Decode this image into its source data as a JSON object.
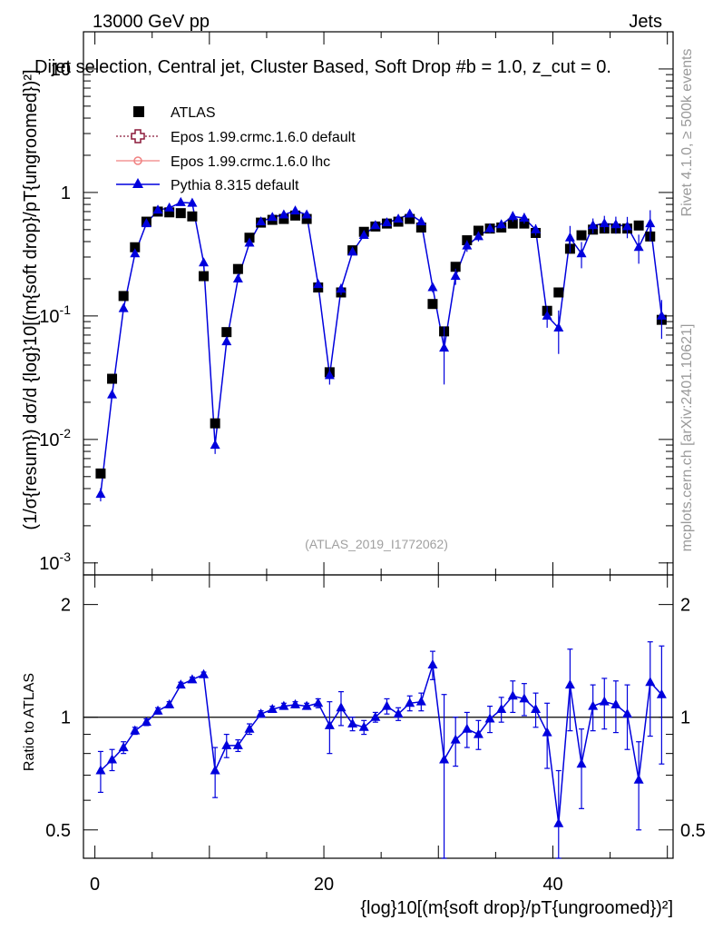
{
  "header": {
    "left": "13000 GeV pp",
    "right": "Jets",
    "title": "Dijet selection, Central jet, Cluster Based, Soft Drop #b = 1.0, z_cut = 0.",
    "ref": "(ATLAS_2019_I1772062)"
  },
  "side": {
    "rivet": "Rivet 4.1.0, ≥ 500k events",
    "mcplots": "mcplots.cern.ch [arXiv:2401.10621]"
  },
  "legend": [
    {
      "label": "ATLAS"
    },
    {
      "label": "Epos 1.99.crmc.1.6.0 default"
    },
    {
      "label": "Epos 1.99.crmc.1.6.0 lhc"
    },
    {
      "label": "Pythia 8.315 default"
    }
  ],
  "axes": {
    "ylabel_main": "(1/σ{resum}) dσ/d {log}10[(m{soft drop}/pT{ungroomed})²]",
    "ylabel_ratio": "Ratio to ATLAS",
    "xlabel": "{log}10[(m{soft drop}/pT{ungroomed})²]",
    "x_ticks": [
      "0",
      "20",
      "40"
    ],
    "y_ticks_main": [
      "10^-3",
      "10^-2",
      "10^-1",
      "1",
      "10"
    ],
    "y_ticks_ratio": [
      "0.5",
      "1",
      "2"
    ]
  },
  "colors": {
    "data": "#000000",
    "pythia": "#0000dd",
    "epos_default": "#8b1a3a",
    "epos_lhc": "#f08080"
  },
  "chart_data": {
    "type": "scatter",
    "x_range": [
      -1,
      50.5
    ],
    "ylim_main": [
      0.0008,
      20
    ],
    "ylim_ratio": [
      0.42,
      2.4
    ],
    "x": [
      0.5,
      1.5,
      2.5,
      3.5,
      4.5,
      5.5,
      6.5,
      7.5,
      8.5,
      9.5,
      10.5,
      11.5,
      12.5,
      13.5,
      14.5,
      15.5,
      16.5,
      17.5,
      18.5,
      19.5,
      20.5,
      21.5,
      22.5,
      23.5,
      24.5,
      25.5,
      26.5,
      27.5,
      28.5,
      29.5,
      30.5,
      31.5,
      32.5,
      33.5,
      34.5,
      35.5,
      36.5,
      37.5,
      38.5,
      39.5,
      40.5,
      41.5,
      42.5,
      43.5,
      44.5,
      45.5,
      46.5,
      47.5,
      48.5,
      49.5
    ],
    "series": [
      {
        "name": "ATLAS",
        "values": [
          0.0053,
          0.031,
          0.145,
          0.36,
          0.58,
          0.7,
          0.69,
          0.68,
          0.64,
          0.21,
          0.0135,
          0.074,
          0.24,
          0.43,
          0.57,
          0.6,
          0.61,
          0.65,
          0.61,
          0.17,
          0.035,
          0.155,
          0.34,
          0.48,
          0.53,
          0.56,
          0.58,
          0.61,
          0.52,
          0.125,
          0.075,
          0.25,
          0.41,
          0.49,
          0.51,
          0.52,
          0.56,
          0.56,
          0.47,
          0.11,
          0.155,
          0.35,
          0.45,
          0.5,
          0.51,
          0.51,
          0.51,
          0.54,
          0.44,
          0.093
        ]
      },
      {
        "name": "Pythia 8.315 default",
        "values": [
          0.0036,
          0.023,
          0.115,
          0.32,
          0.56,
          0.72,
          0.75,
          0.83,
          0.82,
          0.27,
          0.009,
          0.062,
          0.2,
          0.39,
          0.58,
          0.63,
          0.66,
          0.71,
          0.66,
          0.18,
          0.033,
          0.165,
          0.33,
          0.45,
          0.54,
          0.57,
          0.61,
          0.67,
          0.58,
          0.17,
          0.055,
          0.21,
          0.37,
          0.44,
          0.51,
          0.55,
          0.64,
          0.62,
          0.5,
          0.1,
          0.08,
          0.43,
          0.32,
          0.54,
          0.56,
          0.55,
          0.53,
          0.36,
          0.56,
          0.1
        ],
        "ratio": [
          0.72,
          0.77,
          0.83,
          0.92,
          0.97,
          1.04,
          1.08,
          1.22,
          1.26,
          1.3,
          0.72,
          0.84,
          0.84,
          0.93,
          1.02,
          1.05,
          1.07,
          1.08,
          1.07,
          1.09,
          0.95,
          1.06,
          0.96,
          0.94,
          1.0,
          1.07,
          1.02,
          1.09,
          1.1,
          1.38,
          0.77,
          0.87,
          0.93,
          0.9,
          0.99,
          1.05,
          1.14,
          1.12,
          1.05,
          0.91,
          0.52,
          1.22,
          0.75,
          1.07,
          1.1,
          1.08,
          1.02,
          0.68,
          1.24,
          1.15
        ],
        "ratio_err": [
          0.09,
          0.05,
          0.03,
          0.02,
          0.02,
          0.02,
          0.02,
          0.02,
          0.02,
          0.02,
          0.11,
          0.06,
          0.03,
          0.03,
          0.02,
          0.02,
          0.02,
          0.02,
          0.02,
          0.03,
          0.15,
          0.11,
          0.04,
          0.04,
          0.03,
          0.05,
          0.04,
          0.05,
          0.06,
          0.12,
          0.38,
          0.13,
          0.1,
          0.08,
          0.08,
          0.08,
          0.11,
          0.11,
          0.11,
          0.18,
          0.2,
          0.3,
          0.18,
          0.15,
          0.17,
          0.17,
          0.2,
          0.18,
          0.35,
          0.4
        ]
      }
    ]
  }
}
